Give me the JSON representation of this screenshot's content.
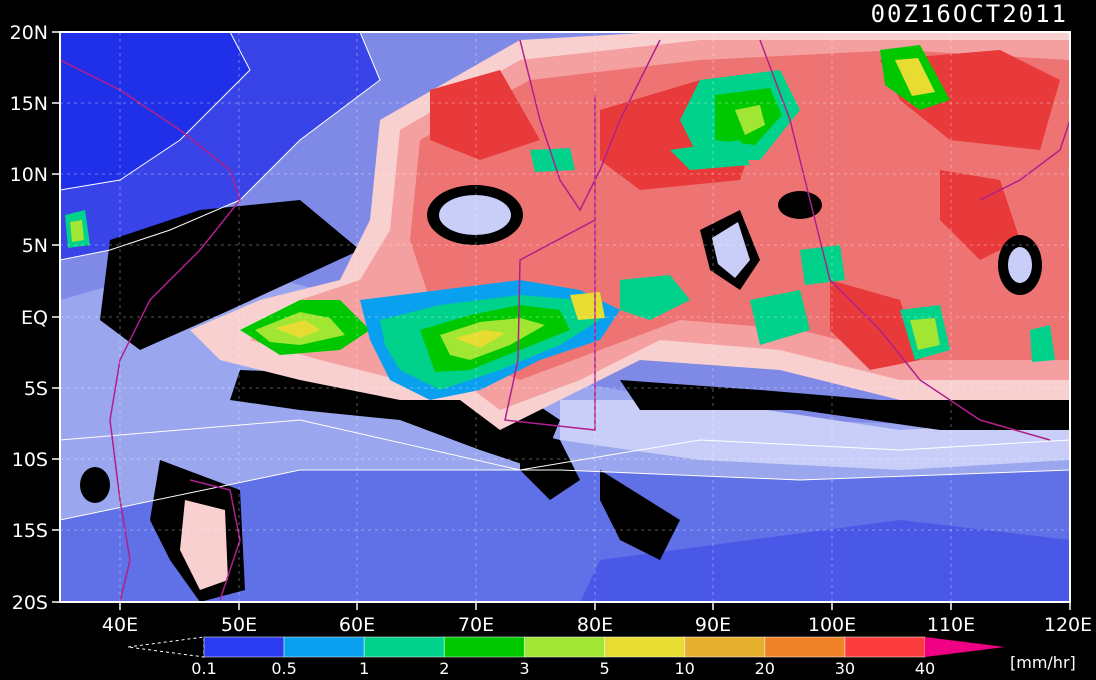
{
  "title": "00Z16OCT2011",
  "lon_labels": [
    "40E",
    "50E",
    "60E",
    "70E",
    "80E",
    "90E",
    "100E",
    "110E",
    "120E"
  ],
  "lat_labels": [
    "20N",
    "15N",
    "10N",
    "5N",
    "EQ",
    "5S",
    "10S",
    "15S",
    "20S"
  ],
  "colorbar": {
    "unit": "[mm/hr]",
    "levels": [
      "0.1",
      "0.5",
      "1",
      "2",
      "3",
      "5",
      "10",
      "20",
      "30",
      "40"
    ],
    "colors": [
      "#2b3bf0",
      "#0aa0f0",
      "#00d28c",
      "#00c800",
      "#a0e632",
      "#e6dc32",
      "#e6af2d",
      "#f08228",
      "#fa3c3c",
      "#f00082"
    ]
  },
  "palette": {
    "background_low": "#3844e8",
    "mid_blue": "#6878e6",
    "light_blue": "#9aa6ee",
    "pale_blue": "#c8cef8",
    "pale_pink": "#f8d0d0",
    "pink": "#f4a0a0",
    "salmon": "#ee7474",
    "red": "#e83a3a",
    "rain_dry": "#000000"
  }
}
